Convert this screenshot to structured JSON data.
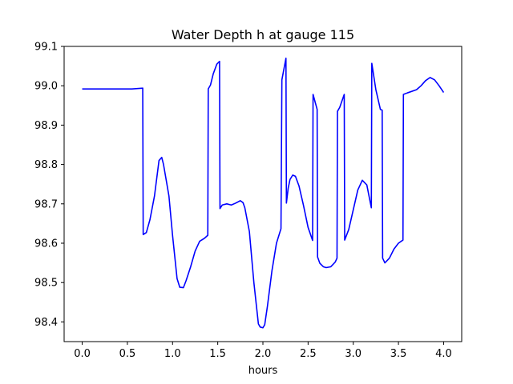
{
  "chart_data": {
    "type": "line",
    "title": "Water Depth h at gauge 115",
    "xlabel": "hours",
    "ylabel": "",
    "xlim": [
      -0.2,
      4.2
    ],
    "ylim": [
      98.35,
      99.1
    ],
    "x_ticks": [
      0.0,
      0.5,
      1.0,
      1.5,
      2.0,
      2.5,
      3.0,
      3.5,
      4.0
    ],
    "x_tick_labels": [
      "0.0",
      "0.5",
      "1.0",
      "1.5",
      "2.0",
      "2.5",
      "3.0",
      "3.5",
      "4.0"
    ],
    "y_ticks": [
      98.4,
      98.5,
      98.6,
      98.7,
      98.8,
      98.9,
      99.0,
      99.1
    ],
    "y_tick_labels": [
      "98.4",
      "98.5",
      "98.6",
      "98.7",
      "98.8",
      "98.9",
      "99.0",
      "99.1"
    ],
    "grid": false,
    "series": [
      {
        "color": "#0000ff",
        "x": [
          0.0,
          0.3,
          0.55,
          0.67,
          0.675,
          0.71,
          0.75,
          0.8,
          0.85,
          0.88,
          0.9,
          0.93,
          0.96,
          1.0,
          1.05,
          1.08,
          1.12,
          1.15,
          1.2,
          1.25,
          1.3,
          1.35,
          1.38,
          1.39,
          1.395,
          1.42,
          1.45,
          1.49,
          1.52,
          1.525,
          1.55,
          1.6,
          1.65,
          1.7,
          1.75,
          1.78,
          1.8,
          1.85,
          1.9,
          1.95,
          1.97,
          2.0,
          2.02,
          2.05,
          2.1,
          2.15,
          2.2,
          2.21,
          2.255,
          2.26,
          2.28,
          2.3,
          2.33,
          2.36,
          2.4,
          2.45,
          2.5,
          2.55,
          2.555,
          2.6,
          2.605,
          2.63,
          2.67,
          2.7,
          2.75,
          2.8,
          2.82,
          2.825,
          2.85,
          2.9,
          2.905,
          2.95,
          3.0,
          3.05,
          3.1,
          3.15,
          3.2,
          3.205,
          3.25,
          3.3,
          3.32,
          3.325,
          3.35,
          3.4,
          3.45,
          3.5,
          3.55,
          3.555,
          3.6,
          3.7,
          3.75,
          3.8,
          3.85,
          3.9,
          3.95,
          4.0
        ],
        "y": [
          98.992,
          98.992,
          98.992,
          98.994,
          98.622,
          98.627,
          98.66,
          98.72,
          98.81,
          98.818,
          98.8,
          98.76,
          98.72,
          98.62,
          98.51,
          98.488,
          98.487,
          98.505,
          98.54,
          98.58,
          98.605,
          98.612,
          98.618,
          98.62,
          98.992,
          99.002,
          99.03,
          99.055,
          99.062,
          98.688,
          98.697,
          98.7,
          98.697,
          98.702,
          98.708,
          98.703,
          98.69,
          98.63,
          98.5,
          98.395,
          98.387,
          98.385,
          98.393,
          98.44,
          98.53,
          98.6,
          98.637,
          99.015,
          99.07,
          98.702,
          98.74,
          98.762,
          98.773,
          98.77,
          98.745,
          98.695,
          98.64,
          98.607,
          98.978,
          98.94,
          98.565,
          98.549,
          98.54,
          98.538,
          98.54,
          98.552,
          98.562,
          98.935,
          98.945,
          98.978,
          98.608,
          98.635,
          98.685,
          98.735,
          98.76,
          98.748,
          98.69,
          99.057,
          98.99,
          98.94,
          98.938,
          98.562,
          98.55,
          98.562,
          98.585,
          98.6,
          98.608,
          98.978,
          98.982,
          98.99,
          99.0,
          99.013,
          99.021,
          99.015,
          99.0,
          98.983
        ]
      }
    ]
  }
}
